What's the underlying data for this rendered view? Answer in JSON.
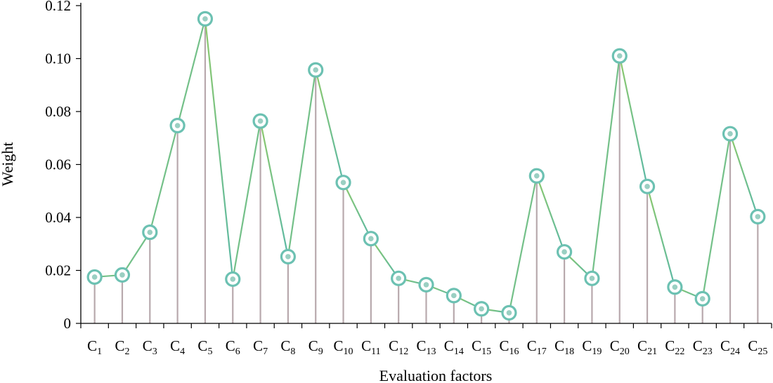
{
  "chart_data": {
    "type": "line",
    "xlabel": "Evaluation factors",
    "ylabel": "Weight",
    "ylim": [
      0,
      0.12
    ],
    "yticks": [
      "0",
      "0.02",
      "0.04",
      "0.06",
      "0.08",
      "0.10",
      "0.12"
    ],
    "categories": [
      "C1",
      "C2",
      "C3",
      "C4",
      "C5",
      "C6",
      "C7",
      "C8",
      "C9",
      "C10",
      "C11",
      "C12",
      "C13",
      "C14",
      "C15",
      "C16",
      "C17",
      "C18",
      "C19",
      "C20",
      "C21",
      "C22",
      "C23",
      "C24",
      "C25"
    ],
    "category_labels": [
      {
        "main": "C",
        "sub": "1"
      },
      {
        "main": "C",
        "sub": "2"
      },
      {
        "main": "C",
        "sub": "3"
      },
      {
        "main": "C",
        "sub": "4"
      },
      {
        "main": "C",
        "sub": "5"
      },
      {
        "main": "C",
        "sub": "6"
      },
      {
        "main": "C",
        "sub": "7"
      },
      {
        "main": "C",
        "sub": "8"
      },
      {
        "main": "C",
        "sub": "9"
      },
      {
        "main": "C",
        "sub": "10"
      },
      {
        "main": "C",
        "sub": "11"
      },
      {
        "main": "C",
        "sub": "12"
      },
      {
        "main": "C",
        "sub": "13"
      },
      {
        "main": "C",
        "sub": "14"
      },
      {
        "main": "C",
        "sub": "15"
      },
      {
        "main": "C",
        "sub": "16"
      },
      {
        "main": "C",
        "sub": "17"
      },
      {
        "main": "C",
        "sub": "18"
      },
      {
        "main": "C",
        "sub": "19"
      },
      {
        "main": "C",
        "sub": "20"
      },
      {
        "main": "C",
        "sub": "21"
      },
      {
        "main": "C",
        "sub": "22"
      },
      {
        "main": "C",
        "sub": "23"
      },
      {
        "main": "C",
        "sub": "24"
      },
      {
        "main": "C",
        "sub": "25"
      }
    ],
    "values": [
      0.0175,
      0.0183,
      0.0344,
      0.0747,
      0.115,
      0.0167,
      0.0764,
      0.0252,
      0.0957,
      0.0532,
      0.032,
      0.017,
      0.0146,
      0.0105,
      0.0055,
      0.004,
      0.0557,
      0.027,
      0.017,
      0.101,
      0.0517,
      0.0137,
      0.0093,
      0.0716,
      0.0403
    ],
    "grid": false,
    "legend": "none",
    "colors": {
      "line_start": "#8dc96b",
      "line_end": "#5ab8a6",
      "marker_ring": "#6cc1b2",
      "marker_center": "#9acfc2",
      "stem": "#b8a9ad",
      "axis": "#000000"
    }
  }
}
